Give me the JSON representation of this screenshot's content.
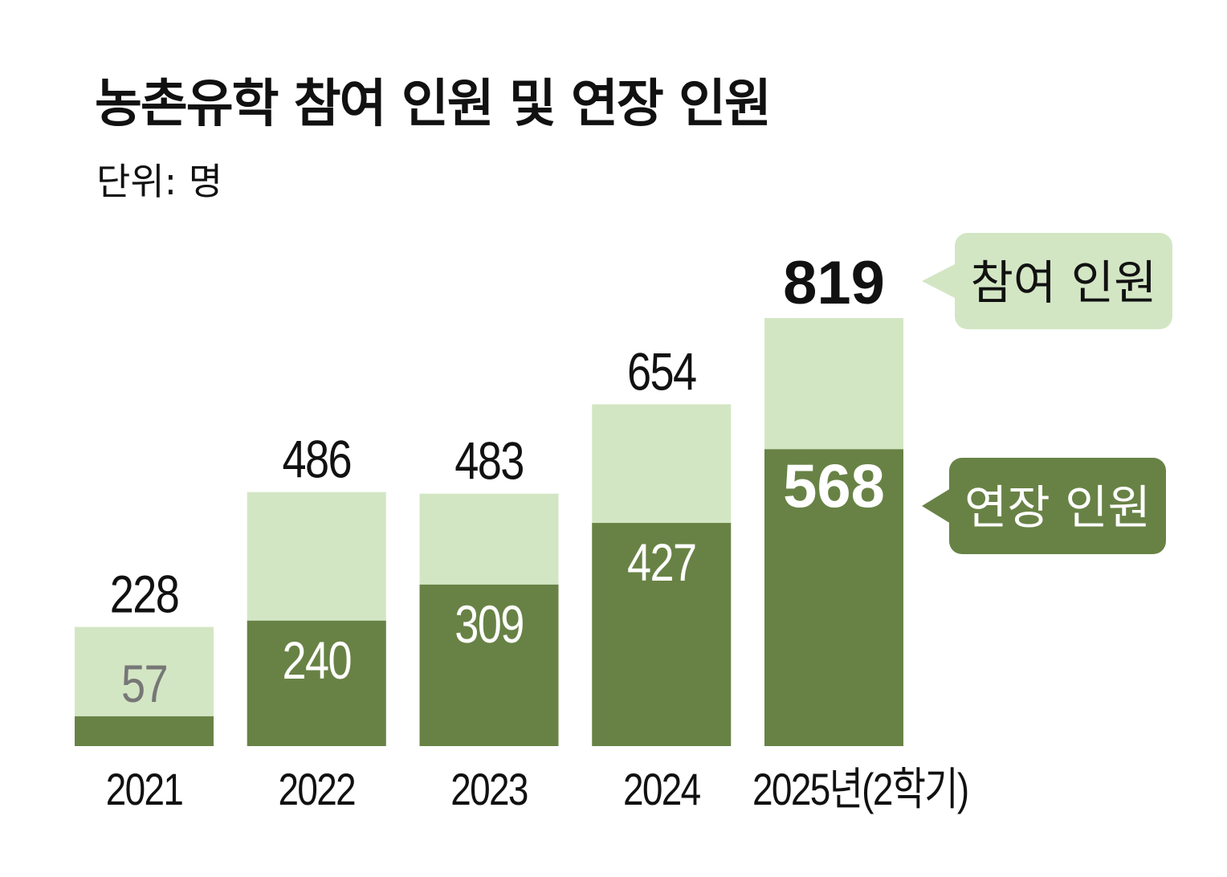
{
  "chart_data": {
    "type": "bar",
    "stacked": "overlay",
    "title": "농촌유학 참여 인원 및 연장 인원",
    "unit_label": "단위: 명",
    "categories": [
      "2021",
      "2022",
      "2023",
      "2024",
      "2025년(2학기)"
    ],
    "series": [
      {
        "name": "참여 인원",
        "values": [
          228,
          486,
          483,
          654,
          819
        ],
        "color": "#d3e6c4"
      },
      {
        "name": "연장 인원",
        "values": [
          57,
          240,
          309,
          427,
          568
        ],
        "color": "#688245"
      }
    ],
    "ylim": [
      0,
      819
    ],
    "grid": false,
    "legend": "right, callout labels"
  }
}
